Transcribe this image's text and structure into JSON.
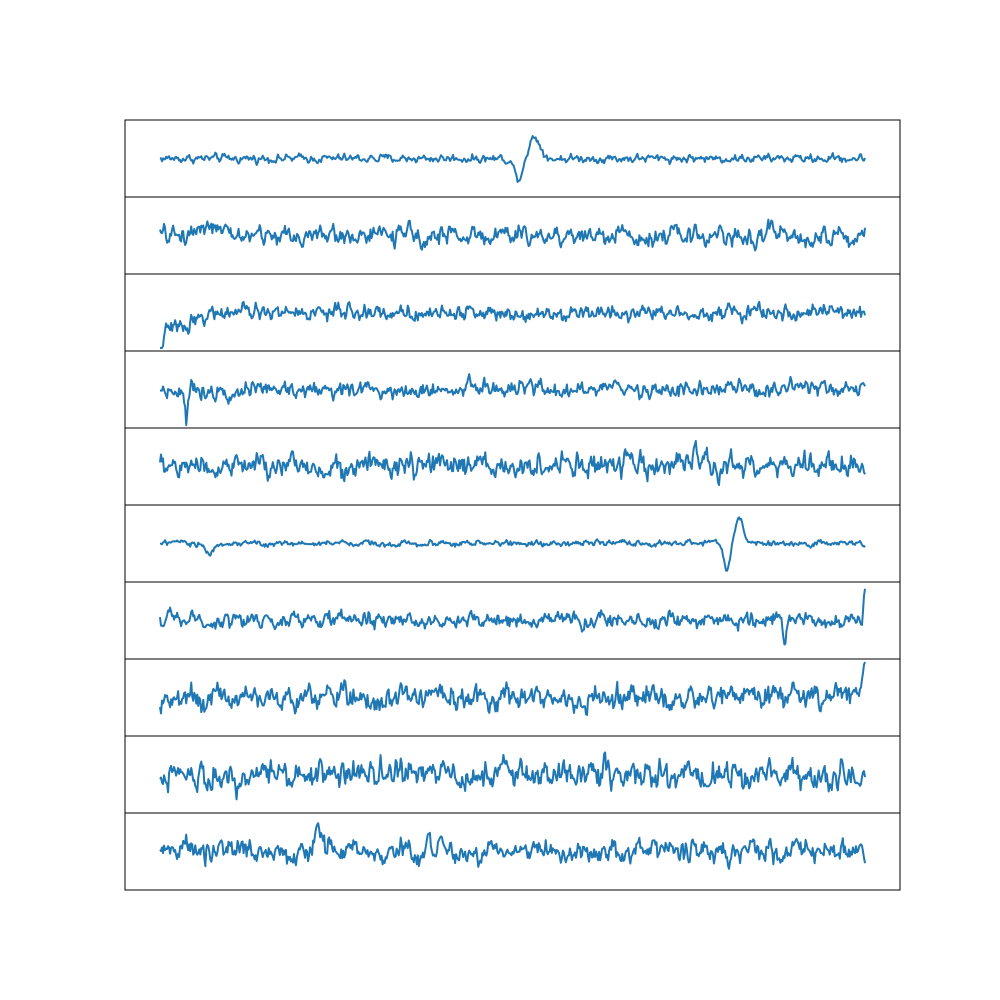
{
  "chart_data": {
    "type": "line",
    "title": "",
    "xlabel": "",
    "ylabel": "",
    "axes_visible": false,
    "grid": false,
    "legend": "none",
    "line_color": "#1f77b4",
    "panel_border_color": "#000000",
    "x_range": [
      0,
      700
    ],
    "panels": [
      {
        "ylim": [
          -1.0,
          1.0
        ],
        "noise": 0.07,
        "events": [
          {
            "x": 356,
            "amp": -0.55,
            "width": 6
          },
          {
            "x": 372,
            "amp": 0.6,
            "width": 8
          }
        ]
      },
      {
        "ylim": [
          -1.0,
          1.0
        ],
        "noise": 0.16,
        "events": [
          {
            "x": 45,
            "amp": 0.35,
            "width": 12
          },
          {
            "x": 589,
            "amp": -0.4,
            "width": 3
          },
          {
            "x": 606,
            "amp": 0.35,
            "width": 3
          }
        ]
      },
      {
        "ylim": [
          -1.0,
          1.0
        ],
        "noise": 0.13,
        "events": [
          {
            "x": 0,
            "amp": -0.95,
            "width": 4
          },
          {
            "x": 12,
            "amp": -0.45,
            "width": 25
          }
        ]
      },
      {
        "ylim": [
          -1.0,
          1.0
        ],
        "noise": 0.14,
        "events": [
          {
            "x": 26,
            "amp": -0.9,
            "width": 2
          },
          {
            "x": 307,
            "amp": 0.4,
            "width": 2
          }
        ]
      },
      {
        "ylim": [
          -1.0,
          1.0
        ],
        "noise": 0.2,
        "events": [
          {
            "x": 531,
            "amp": 0.55,
            "width": 2
          }
        ]
      },
      {
        "ylim": [
          -1.0,
          1.0
        ],
        "noise": 0.05,
        "events": [
          {
            "x": 50,
            "amp": -0.3,
            "width": 5
          },
          {
            "x": 563,
            "amp": -0.75,
            "width": 4
          },
          {
            "x": 575,
            "amp": 0.65,
            "width": 6
          }
        ]
      },
      {
        "ylim": [
          -1.0,
          1.0
        ],
        "noise": 0.13,
        "events": [
          {
            "x": 620,
            "amp": -0.85,
            "width": 2
          },
          {
            "x": 700,
            "amp": 0.7,
            "width": 2
          }
        ]
      },
      {
        "ylim": [
          -1.0,
          1.0
        ],
        "noise": 0.2,
        "events": [
          {
            "x": 700,
            "amp": 1.0,
            "width": 3
          },
          {
            "x": 270,
            "amp": 0.35,
            "width": 3
          }
        ]
      },
      {
        "ylim": [
          -1.0,
          1.0
        ],
        "noise": 0.24,
        "events": [
          {
            "x": 160,
            "amp": 0.45,
            "width": 2
          },
          {
            "x": 545,
            "amp": -0.55,
            "width": 3
          }
        ]
      },
      {
        "ylim": [
          -1.0,
          1.0
        ],
        "noise": 0.19,
        "events": [
          {
            "x": 158,
            "amp": 0.65,
            "width": 4
          },
          {
            "x": 267,
            "amp": 0.55,
            "width": 3
          }
        ]
      }
    ]
  }
}
